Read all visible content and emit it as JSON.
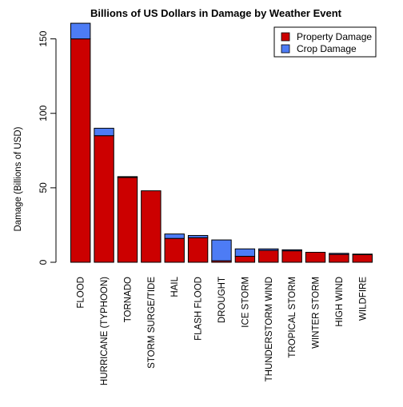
{
  "chart_data": {
    "type": "bar",
    "stacked": true,
    "title": "Billions of US Dollars in Damage by Weather Event",
    "xlabel": "",
    "ylabel": "Damage (Billions of USD)",
    "ylim": [
      0,
      160
    ],
    "yticks": [
      0,
      50,
      100,
      150
    ],
    "grid": false,
    "legend_position": "top-right",
    "categories": [
      "FLOOD",
      "HURRICANE (TYPHOON)",
      "TORNADO",
      "STORM SURGE/TIDE",
      "HAIL",
      "FLASH FLOOD",
      "DROUGHT",
      "ICE STORM",
      "THUNDERSTORM WIND",
      "TROPICAL STORM",
      "WINTER STORM",
      "HIGH WIND",
      "WILDFIRE"
    ],
    "series": [
      {
        "name": "Property Damage",
        "color": "#cc0000",
        "values": [
          150.0,
          85.0,
          57.0,
          48.0,
          16.0,
          16.5,
          1.0,
          4.0,
          8.0,
          7.7,
          6.7,
          5.3,
          5.1
        ]
      },
      {
        "name": "Crop Damage",
        "color": "#4d7cf5",
        "values": [
          10.5,
          5.0,
          0.5,
          0.0,
          3.0,
          1.5,
          14.0,
          5.0,
          1.0,
          0.7,
          0.0,
          0.7,
          0.4
        ]
      }
    ]
  }
}
